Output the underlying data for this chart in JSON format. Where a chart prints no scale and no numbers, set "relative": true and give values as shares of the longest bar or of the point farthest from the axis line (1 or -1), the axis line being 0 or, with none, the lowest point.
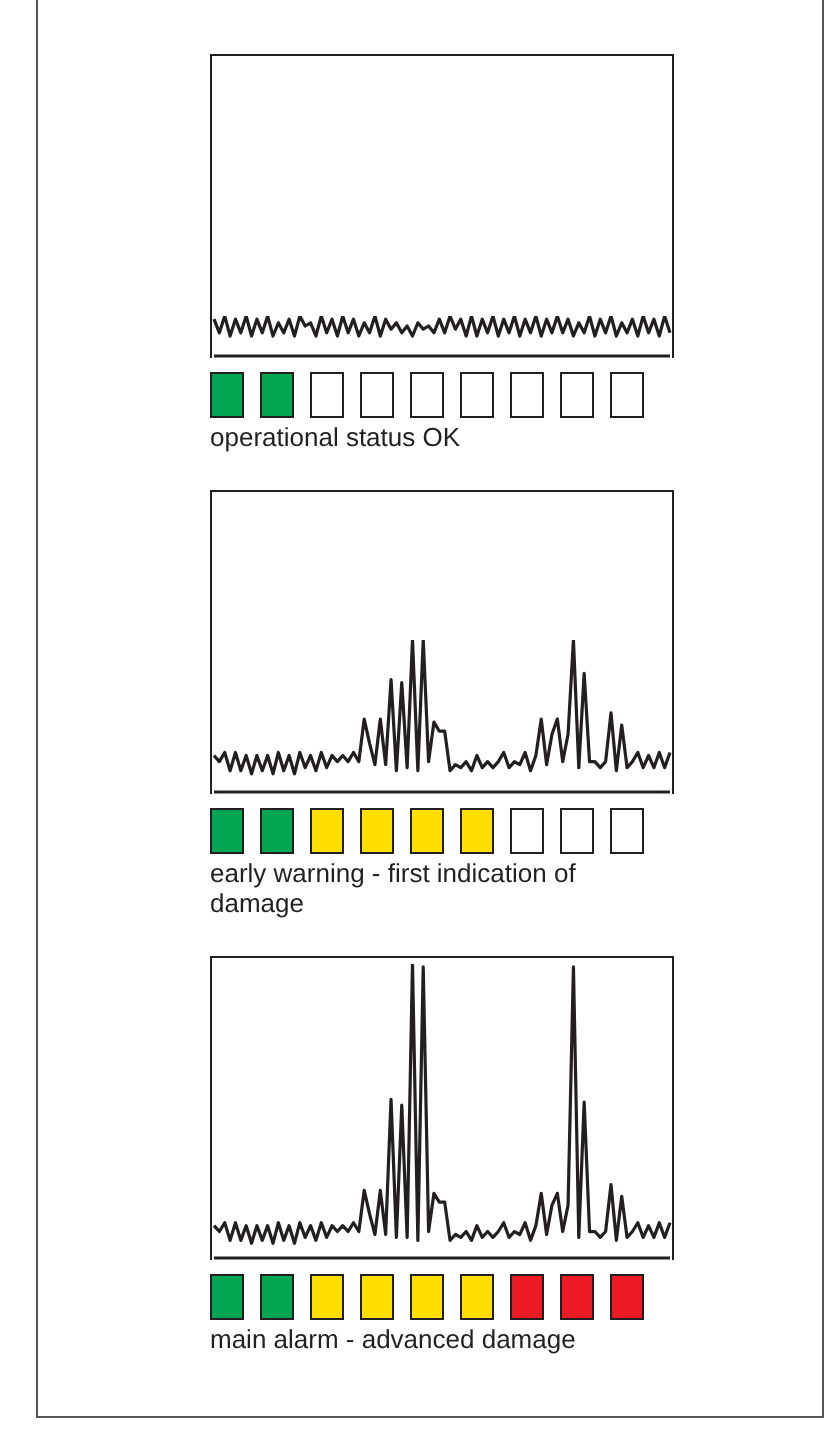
{
  "chart_data": [
    {
      "type": "line",
      "relative": true,
      "categories": [
        null,
        null,
        null,
        null,
        null,
        null,
        null,
        null,
        null,
        null,
        null,
        null,
        null,
        null,
        null,
        null,
        null,
        null,
        null,
        null,
        null,
        null,
        null,
        null,
        null,
        null,
        null,
        null,
        null,
        null,
        null,
        null,
        null,
        null,
        null,
        null,
        null,
        null,
        null,
        null,
        null,
        null,
        null,
        null,
        null,
        null,
        null,
        null,
        null,
        null,
        null,
        null,
        null,
        null,
        null,
        null,
        null,
        null,
        null,
        null,
        null,
        null,
        null,
        null,
        null,
        null,
        null,
        null,
        null,
        null,
        null,
        null,
        null,
        null,
        null,
        null,
        null,
        null,
        null,
        null,
        null,
        null,
        null,
        null,
        null,
        null
      ],
      "series": [
        {
          "color": "#231f20",
          "values": [
            0.92,
            0.58,
            1,
            0.5,
            0.92,
            0.58,
            1,
            0.5,
            0.92,
            0.58,
            1,
            0.5,
            0.83,
            0.58,
            0.92,
            0.5,
            1,
            0.75,
            0.83,
            0.5,
            1,
            0.58,
            0.92,
            0.5,
            1,
            0.58,
            0.92,
            0.5,
            0.83,
            0.58,
            1,
            0.5,
            0.92,
            0.67,
            0.83,
            0.58,
            0.75,
            0.5,
            0.83,
            0.67,
            0.75,
            0.58,
            0.92,
            0.58,
            1,
            0.67,
            0.92,
            0.5,
            1,
            0.5,
            0.92,
            0.58,
            1,
            0.5,
            0.92,
            0.58,
            1,
            0.5,
            0.92,
            0.58,
            1,
            0.5,
            0.92,
            0.58,
            1,
            0.58,
            0.92,
            0.5,
            0.83,
            0.58,
            1,
            0.5,
            0.92,
            0.58,
            1,
            0.5,
            0.83,
            0.58,
            0.92,
            0.5,
            1,
            0.58,
            0.92,
            0.5,
            1,
            0.58
          ]
        }
      ],
      "annotations": [
        "operational status OK"
      ]
    },
    {
      "type": "line",
      "relative": true,
      "categories": [
        null,
        null,
        null,
        null,
        null,
        null,
        null,
        null,
        null,
        null,
        null,
        null,
        null,
        null,
        null,
        null,
        null,
        null,
        null,
        null,
        null,
        null,
        null,
        null,
        null,
        null,
        null,
        null,
        null,
        null,
        null,
        null,
        null,
        null,
        null,
        null,
        null,
        null,
        null,
        null,
        null,
        null,
        null,
        null,
        null,
        null,
        null,
        null,
        null,
        null,
        null,
        null,
        null,
        null,
        null,
        null,
        null,
        null,
        null,
        null,
        null,
        null,
        null,
        null,
        null,
        null,
        null,
        null,
        null,
        null,
        null,
        null,
        null,
        null,
        null,
        null,
        null,
        null,
        null,
        null,
        null,
        null,
        null,
        null,
        null,
        null
      ],
      "series": [
        {
          "color": "#231f20",
          "values": [
            0.24,
            0.2,
            0.26,
            0.14,
            0.26,
            0.14,
            0.24,
            0.12,
            0.24,
            0.14,
            0.24,
            0.12,
            0.26,
            0.14,
            0.24,
            0.12,
            0.26,
            0.16,
            0.24,
            0.14,
            0.26,
            0.16,
            0.24,
            0.2,
            0.24,
            0.2,
            0.26,
            0.2,
            0.48,
            0.32,
            0.18,
            0.48,
            0.18,
            0.74,
            0.14,
            0.72,
            0.16,
            1,
            0.14,
            1,
            0.2,
            0.46,
            0.4,
            0.4,
            0.14,
            0.18,
            0.16,
            0.2,
            0.14,
            0.24,
            0.16,
            0.2,
            0.16,
            0.2,
            0.26,
            0.16,
            0.2,
            0.18,
            0.26,
            0.14,
            0.24,
            0.48,
            0.18,
            0.38,
            0.48,
            0.2,
            0.38,
            1,
            0.16,
            0.78,
            0.2,
            0.2,
            0.16,
            0.2,
            0.52,
            0.14,
            0.44,
            0.16,
            0.2,
            0.26,
            0.16,
            0.24,
            0.16,
            0.26,
            0.16,
            0.26
          ]
        }
      ],
      "annotations": [
        "early warning - first indication of damage"
      ]
    },
    {
      "type": "line",
      "relative": true,
      "categories": [
        null,
        null,
        null,
        null,
        null,
        null,
        null,
        null,
        null,
        null,
        null,
        null,
        null,
        null,
        null,
        null,
        null,
        null,
        null,
        null,
        null,
        null,
        null,
        null,
        null,
        null,
        null,
        null,
        null,
        null,
        null,
        null,
        null,
        null,
        null,
        null,
        null,
        null,
        null,
        null,
        null,
        null,
        null,
        null,
        null,
        null,
        null,
        null,
        null,
        null,
        null,
        null,
        null,
        null,
        null,
        null,
        null,
        null,
        null,
        null,
        null,
        null,
        null,
        null,
        null,
        null,
        null,
        null,
        null,
        null,
        null,
        null,
        null,
        null,
        null,
        null,
        null,
        null,
        null,
        null,
        null,
        null,
        null,
        null,
        null,
        null
      ],
      "series": [
        {
          "color": "#231f20",
          "values": [
            0.11,
            0.09,
            0.12,
            0.06,
            0.12,
            0.06,
            0.11,
            0.05,
            0.11,
            0.06,
            0.11,
            0.05,
            0.12,
            0.06,
            0.11,
            0.05,
            0.12,
            0.07,
            0.11,
            0.06,
            0.12,
            0.07,
            0.11,
            0.09,
            0.11,
            0.09,
            0.12,
            0.09,
            0.23,
            0.15,
            0.08,
            0.23,
            0.08,
            0.54,
            0.07,
            0.52,
            0.07,
            1,
            0.06,
            0.99,
            0.09,
            0.22,
            0.19,
            0.19,
            0.06,
            0.08,
            0.07,
            0.09,
            0.06,
            0.11,
            0.07,
            0.09,
            0.07,
            0.09,
            0.12,
            0.07,
            0.09,
            0.08,
            0.12,
            0.06,
            0.11,
            0.22,
            0.08,
            0.18,
            0.22,
            0.09,
            0.18,
            0.99,
            0.07,
            0.53,
            0.09,
            0.09,
            0.07,
            0.09,
            0.25,
            0.06,
            0.21,
            0.07,
            0.09,
            0.12,
            0.07,
            0.11,
            0.07,
            0.12,
            0.07,
            0.12
          ]
        }
      ],
      "annotations": [
        "main alarm - advanced damage"
      ]
    }
  ]
}
